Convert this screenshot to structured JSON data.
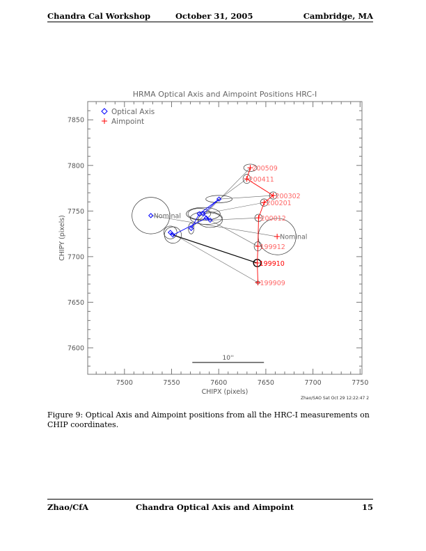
{
  "header": {
    "left": "Chandra Cal Workshop",
    "center": "October 31, 2005",
    "right": "Cambridge, MA"
  },
  "footer": {
    "left": "Zhao/CfA",
    "center": "Chandra Optical Axis and Aimpoint",
    "right": "15"
  },
  "caption": "Figure 9: Optical Axis and Aimpoint positions from all the HRC-I measurements on CHIP coordinates.",
  "chart_data": {
    "type": "scatter",
    "title": "HRMA Optical Axis and Aimpoint Positions   HRC-I",
    "xlabel": "CHIPX (pixels)",
    "ylabel": "CHIPY (pixels)",
    "xlim": [
      7461,
      7752
    ],
    "ylim": [
      7571,
      7870
    ],
    "xticks": [
      7500,
      7550,
      7600,
      7650,
      7700,
      7750
    ],
    "yticks": [
      7600,
      7650,
      7700,
      7750,
      7800,
      7850
    ],
    "legend": {
      "placement": "top-left",
      "entries": [
        {
          "name": "Optical Axis",
          "marker": "diamond",
          "color": "#0000ff"
        },
        {
          "name": "Aimpoint",
          "marker": "plus",
          "color": "#ff0000"
        }
      ]
    },
    "scale_bar": {
      "label": "10''",
      "x": [
        7572,
        7648
      ],
      "y": 7584
    },
    "credit": "Zhao/SAO Sat Oct 29 12:22:47 2",
    "nominal": {
      "label": "Nominal",
      "optical_axis": [
        7528,
        7745
      ],
      "optical_axis_radius": [
        20,
        20
      ],
      "aimpoint": [
        7662,
        7722
      ],
      "aimpoint_radius": [
        20,
        20
      ]
    },
    "measurements": [
      {
        "label": "199909",
        "aimpoint": [
          7641.6,
          7671.6
        ],
        "ap_err": [
          2,
          1.5
        ],
        "optical_axis": [
          7548.7,
          7726.5
        ],
        "oa_err": [
          7,
          7
        ]
      },
      {
        "label": "199910",
        "aimpoint": [
          7640.9,
          7693.0
        ],
        "ap_err": [
          4,
          4
        ],
        "optical_axis": [
          7551.4,
          7723.7
        ],
        "oa_err": [
          9,
          9
        ]
      },
      {
        "label": "199912",
        "aimpoint": [
          7641.6,
          7711.3
        ],
        "ap_err": [
          4,
          5
        ],
        "optical_axis": [
          7586.8,
          7742.3
        ],
        "oa_err": [
          17,
          7
        ]
      },
      {
        "label": "200012",
        "aimpoint": [
          7642.3,
          7742.5
        ],
        "ap_err": [
          4,
          4
        ],
        "optical_axis": [
          7590.9,
          7740.0
        ],
        "oa_err": [
          13,
          8
        ]
      },
      {
        "label": "200201",
        "aimpoint": [
          7648.2,
          7759.3
        ],
        "ap_err": [
          4,
          4
        ],
        "optical_axis": [
          7583.6,
          7746.9
        ],
        "oa_err": [
          18,
          7
        ]
      },
      {
        "label": "200302",
        "aimpoint": [
          7657.8,
          7767.0
        ],
        "ap_err": [
          4,
          4
        ],
        "optical_axis": [
          7600.3,
          7763.1
        ],
        "oa_err": [
          14,
          4
        ]
      },
      {
        "label": "200411",
        "aimpoint": [
          7629.8,
          7785.2
        ],
        "ap_err": [
          4,
          5
        ],
        "optical_axis": [
          7579.4,
          7746.9
        ],
        "oa_err": [
          12,
          6
        ]
      },
      {
        "label": "200509",
        "aimpoint": [
          7633.5,
          7797.4
        ],
        "ap_err": [
          7,
          4
        ],
        "optical_axis": [
          7570.8,
          7730.9
        ],
        "oa_err": [
          3,
          6
        ]
      }
    ],
    "highlight": "199910",
    "colors": {
      "optical_axis": "#0000ff",
      "aimpoint": "#ff0000",
      "aimpoint_label": "#ff6666",
      "axis": "#777777",
      "ellipse": "#333333"
    }
  }
}
